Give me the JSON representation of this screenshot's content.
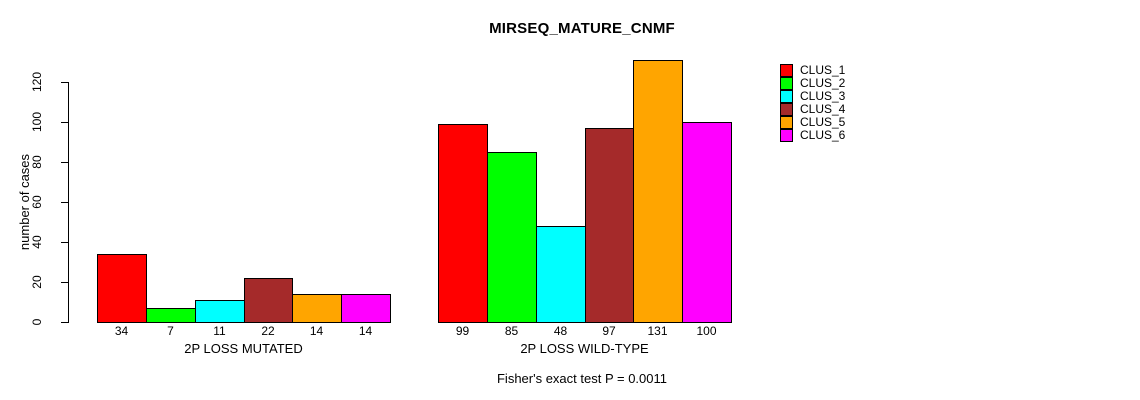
{
  "chart_data": {
    "type": "bar",
    "title": "MIRSEQ_MATURE_CNMF",
    "xlabel": "",
    "ylabel": "number of cases",
    "annotation": "Fisher's exact test P = 0.0011",
    "ylim": [
      0,
      131
    ],
    "yticks": [
      0,
      20,
      40,
      60,
      80,
      100,
      120
    ],
    "grid": false,
    "legend_position": "right",
    "categories": [
      "2P LOSS MUTATED",
      "2P LOSS WILD-TYPE"
    ],
    "series": [
      {
        "name": "CLUS_1",
        "color": "#FF0000",
        "values": [
          34,
          99
        ]
      },
      {
        "name": "CLUS_2",
        "color": "#00FF00",
        "values": [
          7,
          85
        ]
      },
      {
        "name": "CLUS_3",
        "color": "#00FFFF",
        "values": [
          11,
          48
        ]
      },
      {
        "name": "CLUS_4",
        "color": "#A52A2A",
        "values": [
          22,
          97
        ]
      },
      {
        "name": "CLUS_5",
        "color": "#FFA500",
        "values": [
          14,
          131
        ]
      },
      {
        "name": "CLUS_6",
        "color": "#FF00FF",
        "values": [
          14,
          100
        ]
      }
    ],
    "bar_value_labels": {
      "2P LOSS MUTATED": [
        34,
        7,
        11,
        22,
        14,
        14
      ],
      "2P LOSS WILD-TYPE": [
        99,
        85,
        48,
        97,
        131,
        100
      ]
    },
    "axis_color": "#000000",
    "bar_border_color": "#000000",
    "background_color": "#FFFFFF"
  }
}
